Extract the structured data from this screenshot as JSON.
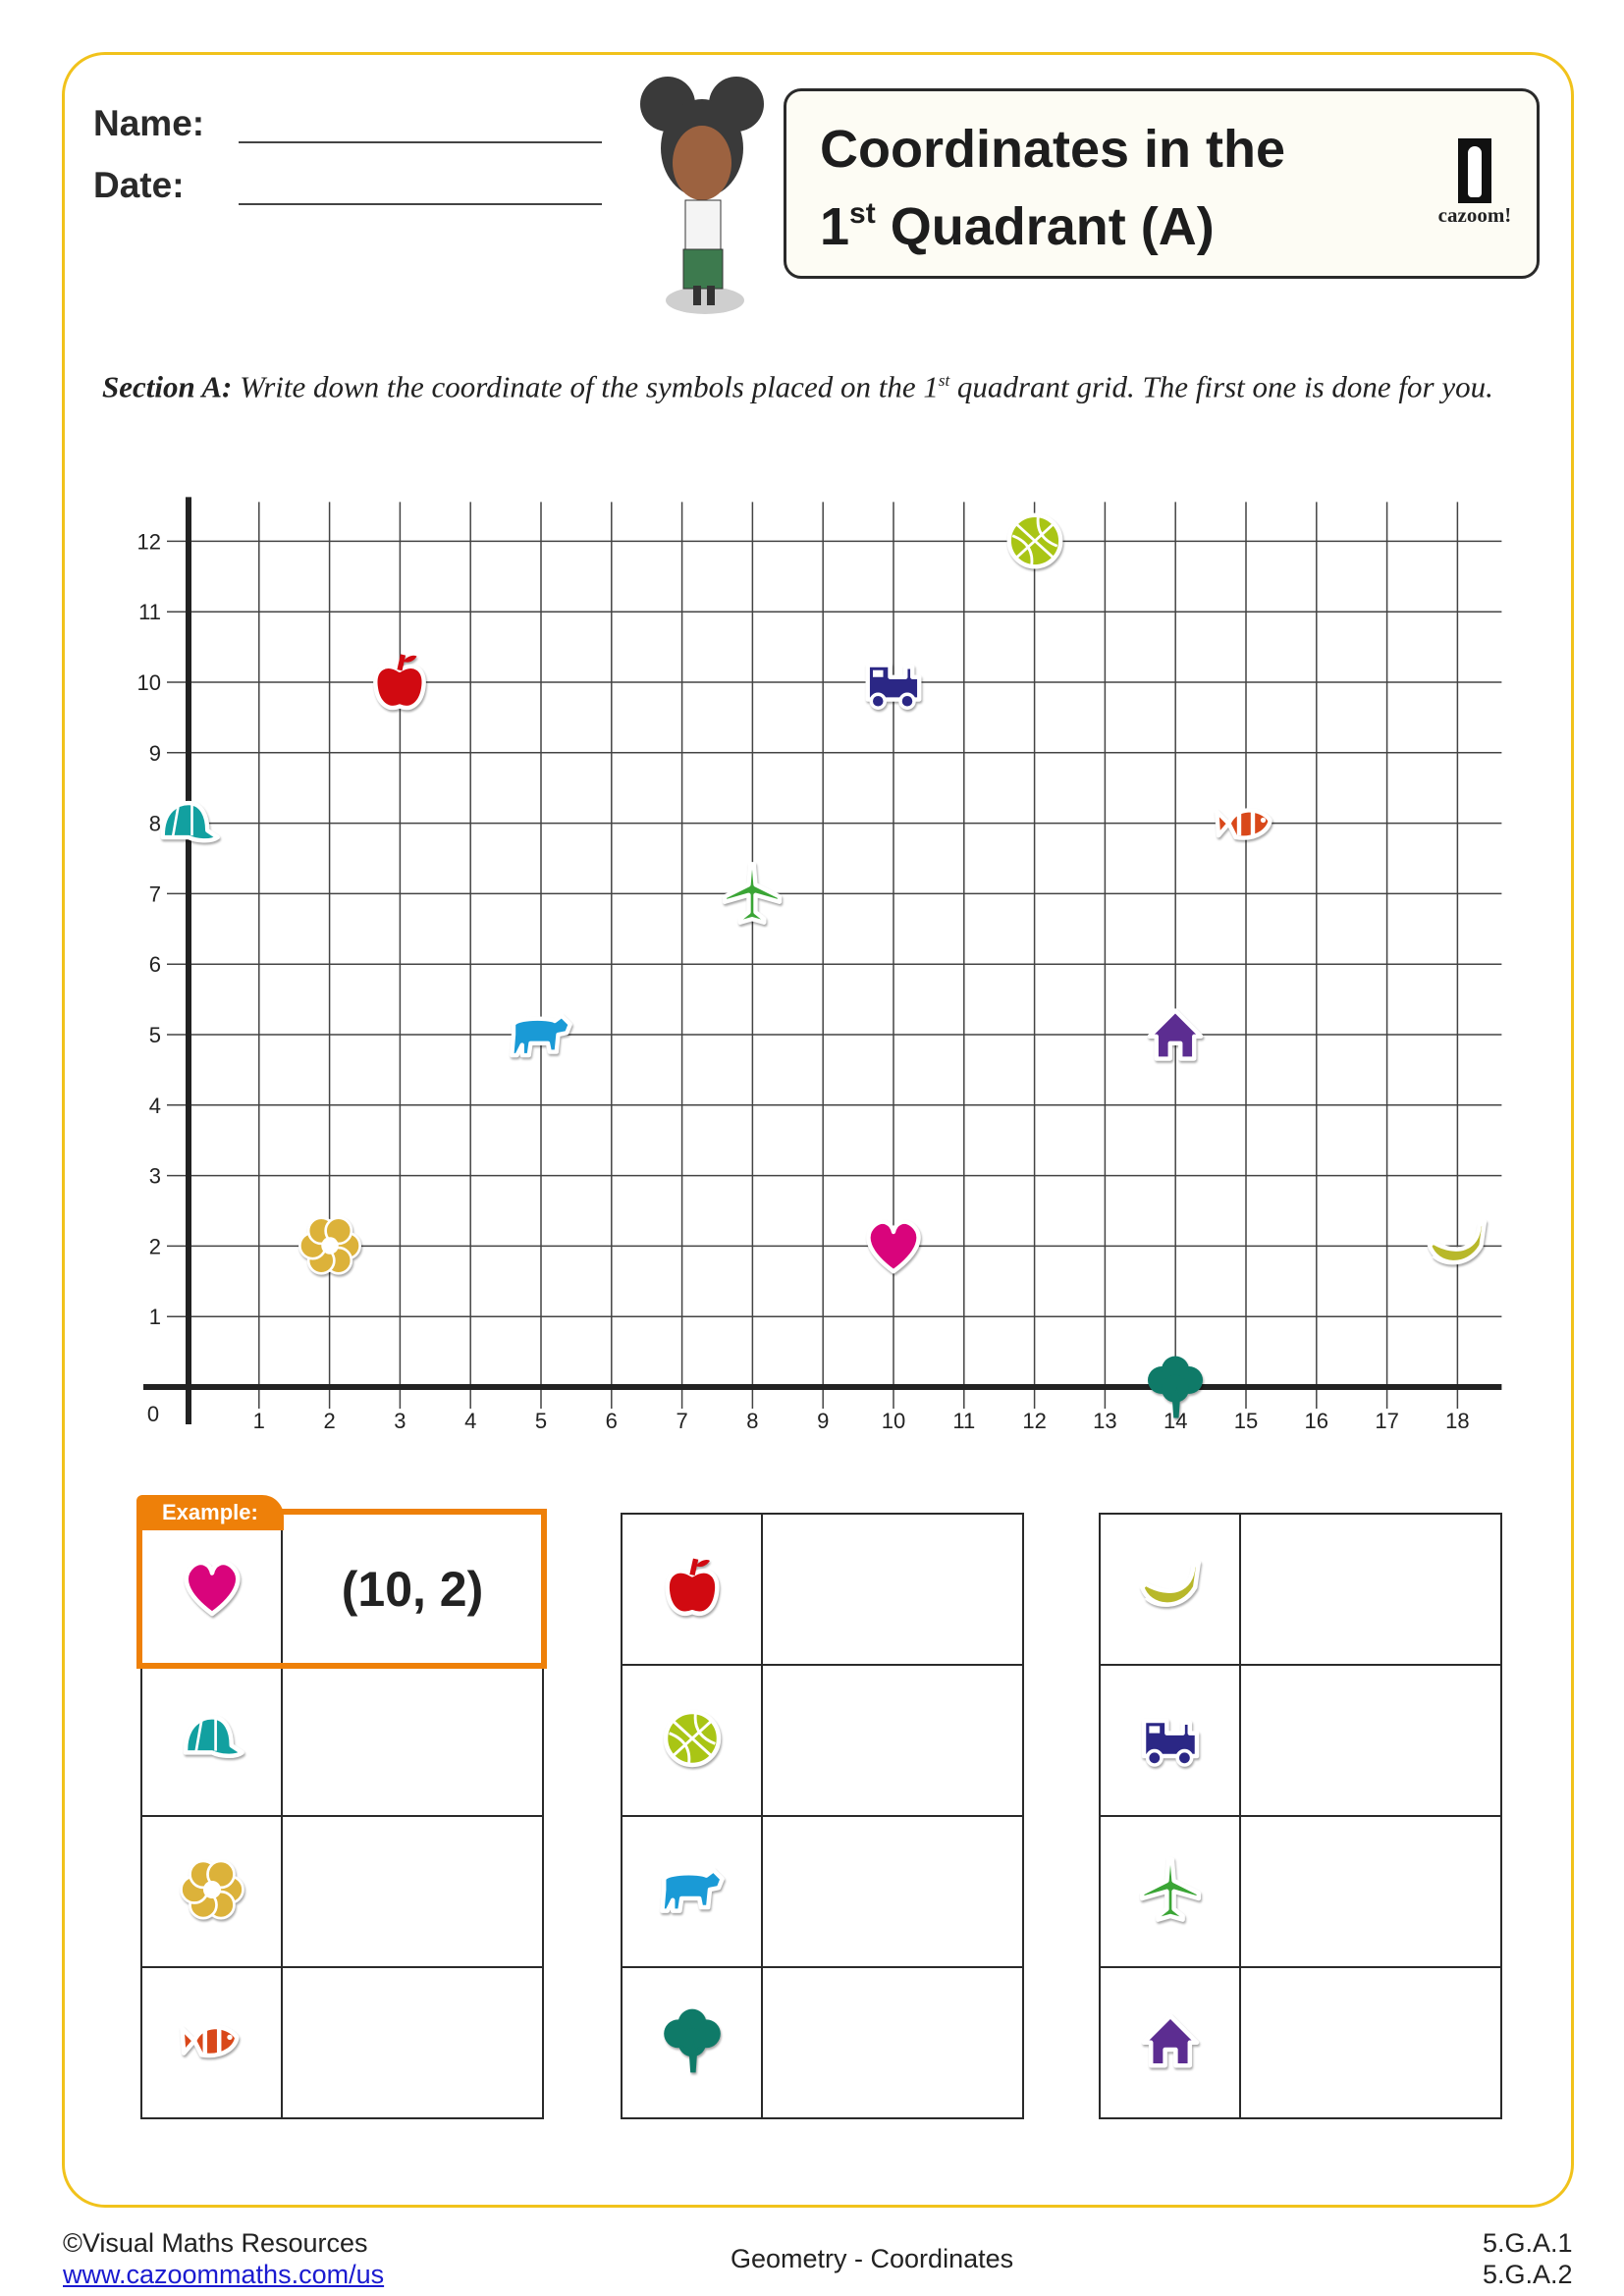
{
  "header": {
    "name_label": "Name:",
    "date_label": "Date:",
    "title_line1": "Coordinates in the",
    "title_line2_num": "1",
    "title_line2_sup": "st",
    "title_line2_rest": " Quadrant (A)",
    "logo_text": "cazoom!"
  },
  "instructions": {
    "section_label": "Section A:",
    "text_before_sup": " Write down the coordinate of the symbols placed on the 1",
    "sup": "st",
    "text_after_sup": " quadrant grid. The first one is done for you."
  },
  "grid": {
    "x_max": 18,
    "y_max": 12,
    "origin_label": "0",
    "x_ticks": [
      "1",
      "2",
      "3",
      "4",
      "5",
      "6",
      "7",
      "8",
      "9",
      "10",
      "11",
      "12",
      "13",
      "14",
      "15",
      "16",
      "17",
      "18"
    ],
    "y_ticks": [
      "1",
      "2",
      "3",
      "4",
      "5",
      "6",
      "7",
      "8",
      "9",
      "10",
      "11",
      "12"
    ],
    "symbols": [
      {
        "icon": "heart",
        "x": 10,
        "y": 2
      },
      {
        "icon": "apple",
        "x": 3,
        "y": 10
      },
      {
        "icon": "basketball",
        "x": 12,
        "y": 12
      },
      {
        "icon": "train",
        "x": 10,
        "y": 10
      },
      {
        "icon": "cap",
        "x": 0,
        "y": 8
      },
      {
        "icon": "fish",
        "x": 15,
        "y": 8
      },
      {
        "icon": "airplane",
        "x": 8,
        "y": 7
      },
      {
        "icon": "bear",
        "x": 5,
        "y": 5
      },
      {
        "icon": "house",
        "x": 14,
        "y": 5
      },
      {
        "icon": "flower",
        "x": 2,
        "y": 2
      },
      {
        "icon": "banana",
        "x": 18,
        "y": 2
      },
      {
        "icon": "tree",
        "x": 14,
        "y": 0
      }
    ]
  },
  "colors": {
    "heart": "#d9047c",
    "apple": "#d10a11",
    "basketball": "#a9c515",
    "train": "#2b2785",
    "cap": "#12a0a0",
    "fish": "#d9481a",
    "airplane": "#3aa535",
    "bear": "#1a9ad6",
    "house": "#5c2d91",
    "flower": "#dcb23a",
    "banana": "#b8b82a",
    "tree": "#0f7a68",
    "frame": "#f1c21b",
    "example": "#ee8009"
  },
  "example_label": "Example:",
  "answer_tables": [
    {
      "rows": [
        {
          "icon": "heart",
          "answer": "(10, 2)"
        },
        {
          "icon": "cap",
          "answer": ""
        },
        {
          "icon": "flower",
          "answer": ""
        },
        {
          "icon": "fish",
          "answer": ""
        }
      ]
    },
    {
      "rows": [
        {
          "icon": "apple",
          "answer": ""
        },
        {
          "icon": "basketball",
          "answer": ""
        },
        {
          "icon": "bear",
          "answer": ""
        },
        {
          "icon": "tree",
          "answer": ""
        }
      ]
    },
    {
      "rows": [
        {
          "icon": "banana",
          "answer": ""
        },
        {
          "icon": "train",
          "answer": ""
        },
        {
          "icon": "airplane",
          "answer": ""
        },
        {
          "icon": "house",
          "answer": ""
        }
      ]
    }
  ],
  "footer": {
    "copyright": "©Visual Maths Resources",
    "url": "www.cazoommaths.com/us",
    "topic": "Geometry - Coordinates",
    "standard1": "5.G.A.1",
    "standard2": "5.G.A.2"
  }
}
